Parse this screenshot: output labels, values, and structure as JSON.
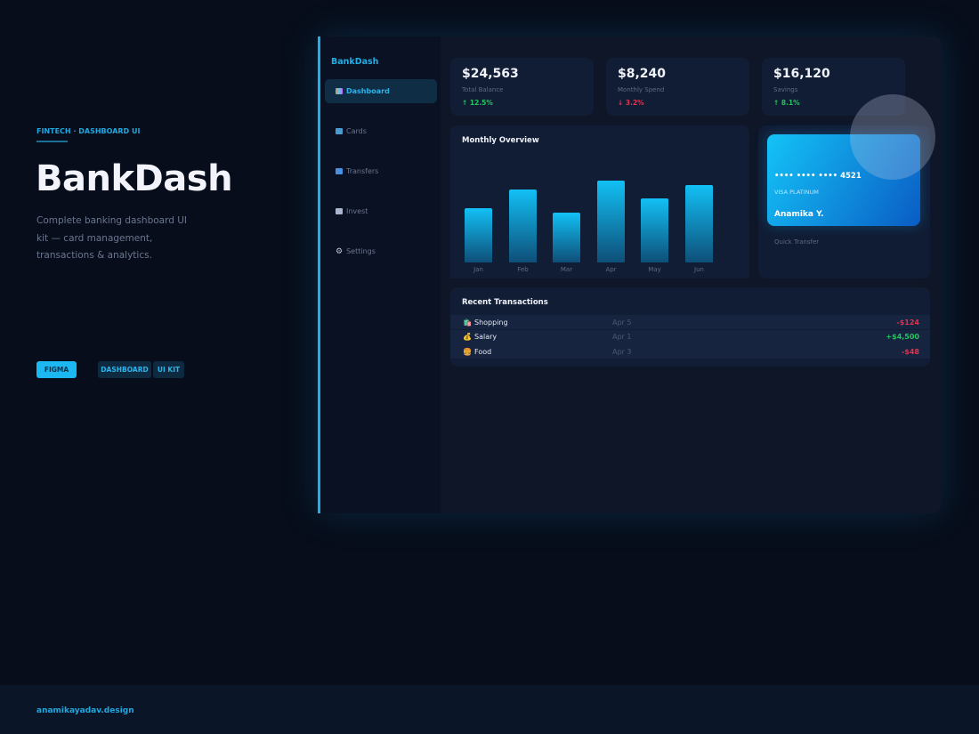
{
  "intro": {
    "kicker": "FINTECH · DASHBOARD UI",
    "title": "BankDash",
    "description": "Complete banking dashboard UI kit — card management, transactions & analytics.",
    "tags": [
      "FIGMA",
      "DASHBOARD",
      "UI KIT"
    ]
  },
  "footer": {
    "site": "anamikayadav.design"
  },
  "app": {
    "brand": "BankDash",
    "nav": [
      {
        "label": "Dashboard",
        "icon": "chart-icon",
        "active": true
      },
      {
        "label": "Cards",
        "icon": "card-icon"
      },
      {
        "label": "Transfers",
        "icon": "transfer-icon"
      },
      {
        "label": "Invest",
        "icon": "invest-icon"
      },
      {
        "label": "Settings",
        "icon": "gear-icon"
      }
    ],
    "stats": [
      {
        "value": "$24,563",
        "label": "Total Balance",
        "change": "↑ 12.5%",
        "color": "#22c55e"
      },
      {
        "value": "$8,240",
        "label": "Monthly Spend",
        "change": "↓ 3.2%",
        "color": "#e0334f"
      },
      {
        "value": "$16,120",
        "label": "Savings",
        "change": "↑ 8.1%",
        "color": "#22c55e"
      }
    ],
    "credit_card": {
      "number": "•••• •••• •••• 4521",
      "type": "VISA PLATINUM",
      "holder": "Anamika Y.",
      "quick_transfer": "Quick Transfer"
    },
    "transactions": {
      "title": "Recent Transactions",
      "rows": [
        {
          "icon": "🛍️",
          "name": "Shopping",
          "date": "Apr 5",
          "amount": "-$124",
          "color": "#e0334f"
        },
        {
          "icon": "💰",
          "name": "Salary",
          "date": "Apr 1",
          "amount": "+$4,500",
          "color": "#22c55e"
        },
        {
          "icon": "🍔",
          "name": "Food",
          "date": "Apr 3",
          "amount": "-$48",
          "color": "#e0334f"
        }
      ]
    }
  },
  "chart_data": {
    "type": "bar",
    "title": "Monthly Overview",
    "categories": [
      "Jan",
      "Feb",
      "Mar",
      "Apr",
      "May",
      "Jun"
    ],
    "values": [
      61,
      82,
      56,
      92,
      72,
      87
    ],
    "ylim": [
      0,
      100
    ],
    "xlabel": "",
    "ylabel": ""
  }
}
